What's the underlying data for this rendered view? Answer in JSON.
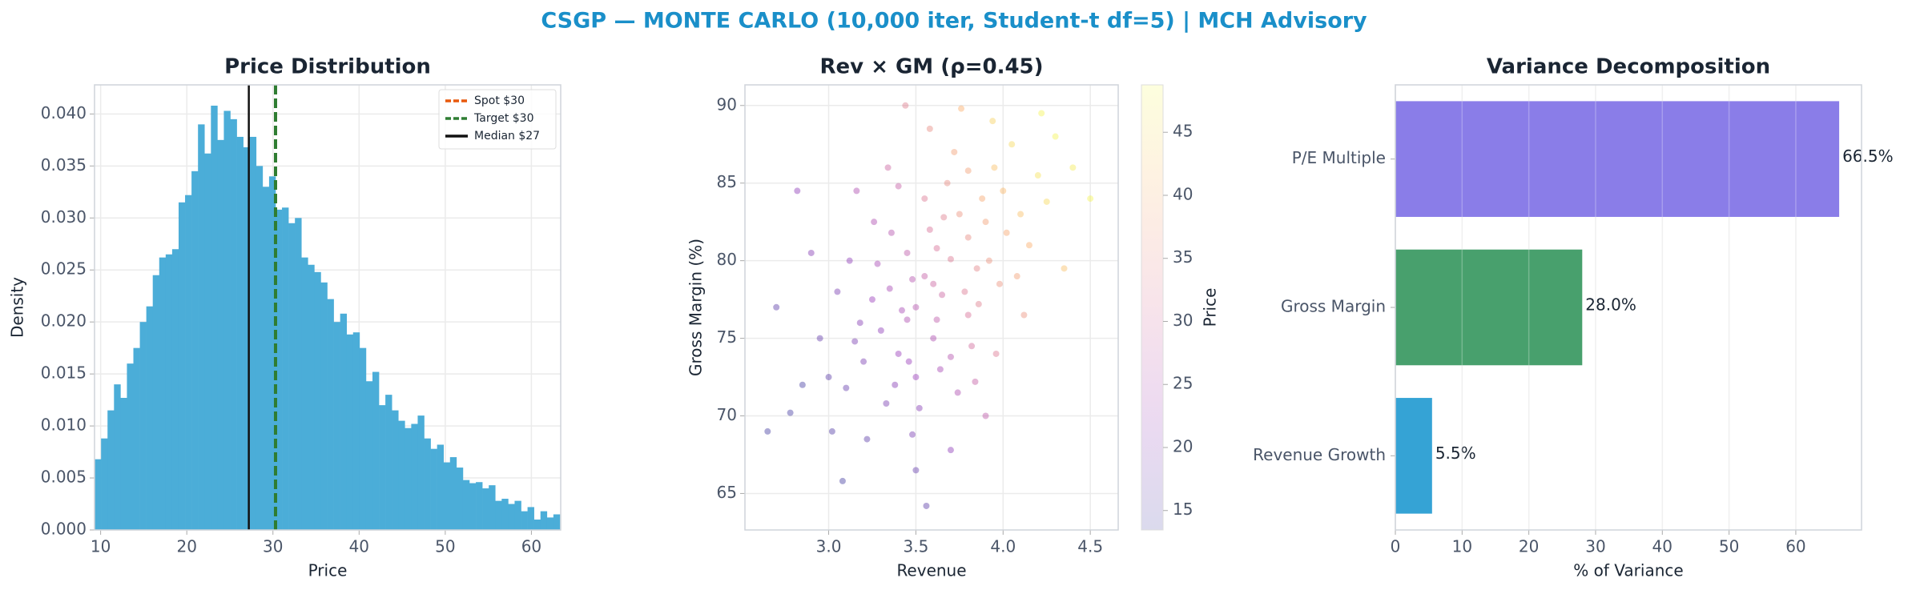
{
  "title": "CSGP — MONTE CARLO (10,000 iter, Student-t df=5) | MCH Advisory",
  "chart_data": [
    {
      "type": "histogram",
      "title": "Price Distribution",
      "xlabel": "Price",
      "ylabel": "Density",
      "color": "#4badd8",
      "grid": true,
      "bins": [
        9.3,
        10.05,
        10.8,
        11.55,
        12.3,
        13.05,
        13.8,
        14.55,
        15.3,
        16.05,
        16.8,
        17.55,
        18.3,
        19.05,
        19.8,
        20.55,
        21.3,
        22.05,
        22.8,
        23.55,
        24.3,
        25.05,
        25.8,
        26.55,
        27.3,
        28.05,
        28.8,
        29.55,
        30.3,
        31.05,
        31.8,
        32.55,
        33.3,
        34.05,
        34.8,
        35.55,
        36.3,
        37.05,
        37.8,
        38.55,
        39.3,
        40.05,
        40.8,
        41.55,
        42.3,
        43.05,
        43.8,
        44.55,
        45.3,
        46.05,
        46.8,
        47.55,
        48.3,
        49.05,
        49.8,
        50.55,
        51.3,
        52.05,
        52.8,
        53.55,
        54.3,
        55.05,
        55.8,
        56.55,
        57.3,
        58.05,
        58.8,
        59.55,
        60.3,
        61.05,
        61.8,
        62.55,
        63.3
      ],
      "values": [
        0.0068,
        0.0088,
        0.0115,
        0.014,
        0.0127,
        0.016,
        0.0175,
        0.02,
        0.0215,
        0.0245,
        0.0262,
        0.0265,
        0.027,
        0.0315,
        0.0322,
        0.0345,
        0.039,
        0.0362,
        0.0408,
        0.0375,
        0.0403,
        0.0395,
        0.0378,
        0.0368,
        0.0378,
        0.035,
        0.033,
        0.034,
        0.0308,
        0.031,
        0.0295,
        0.03,
        0.0262,
        0.0255,
        0.0248,
        0.0238,
        0.0222,
        0.02,
        0.0208,
        0.0188,
        0.019,
        0.0175,
        0.0143,
        0.0152,
        0.012,
        0.013,
        0.0115,
        0.0105,
        0.0098,
        0.0102,
        0.011,
        0.0088,
        0.0078,
        0.0082,
        0.0065,
        0.007,
        0.006,
        0.0048,
        0.0045,
        0.0046,
        0.004,
        0.0043,
        0.0028,
        0.003,
        0.0025,
        0.0028,
        0.0018,
        0.0022,
        0.001,
        0.0018,
        0.0012,
        0.0015
      ],
      "vlines": [
        {
          "name": "Spot $30",
          "x": 30.3,
          "color": "#e8590c",
          "style": "dashed"
        },
        {
          "name": "Target $30",
          "x": 30.3,
          "color": "#2e7d32",
          "style": "dashed"
        },
        {
          "name": "Median $27",
          "x": 27.2,
          "color": "#111111",
          "style": "solid"
        }
      ],
      "legend": "upper right",
      "xlim": [
        9.29,
        63.4
      ],
      "xticks": [
        10,
        20,
        30,
        40,
        50,
        60
      ],
      "ylim": [
        0,
        0.0428
      ],
      "yticks": [
        {
          "value": 0,
          "label": "0.000"
        },
        {
          "value": 0.005,
          "label": "0.005"
        },
        {
          "value": 0.01,
          "label": "0.010"
        },
        {
          "value": 0.015,
          "label": "0.015"
        },
        {
          "value": 0.02,
          "label": "0.020"
        },
        {
          "value": 0.025,
          "label": "0.025"
        },
        {
          "value": 0.03,
          "label": "0.030"
        },
        {
          "value": 0.035,
          "label": "0.035"
        },
        {
          "value": 0.04,
          "label": "0.040"
        }
      ]
    },
    {
      "type": "scatter",
      "title": "Rev × GM (ρ=0.45)",
      "xlabel": "Revenue",
      "ylabel": "Gross Margin (%)",
      "colormap": "plasma",
      "grid": true,
      "x": [
        3.5,
        3.45,
        3.6,
        3.7,
        3.3,
        3.8,
        3.55,
        3.4,
        3.65,
        3.9,
        3.2,
        3.75,
        3.35,
        3.85,
        3.5,
        4.0,
        3.1,
        3.6,
        3.95,
        3.25,
        3.7,
        4.1,
        3.45,
        3.8,
        3.15,
        3.58,
        4.05,
        3.38,
        3.68,
        3.92,
        3.0,
        3.52,
        4.2,
        3.28,
        3.78,
        3.42,
        3.62,
        3.88,
        3.18,
        4.15,
        2.95,
        3.48,
        3.72,
        3.33,
        3.98,
        3.55,
        4.3,
        3.05,
        3.82,
        3.22,
        3.66,
        4.08,
        3.36,
        2.85,
        3.94,
        3.46,
        4.25,
        3.12,
        3.74,
        3.58,
        2.78,
        3.86,
        3.4,
        4.4,
        3.02,
        3.64,
        4.02,
        3.26,
        3.76,
        3.5,
        2.7,
        4.12,
        3.34,
        3.84,
        2.9,
        4.5,
        3.56,
        3.96,
        3.16,
        3.7,
        4.22,
        2.82,
        3.44,
        3.9,
        3.08,
        4.35,
        2.65,
        3.62,
        3.48,
        3.8
      ],
      "y": [
        77,
        76.2,
        78.5,
        80.1,
        75.5,
        81.5,
        79,
        74,
        77.8,
        82.5,
        73.5,
        83,
        78.2,
        79.5,
        72.5,
        84.5,
        71.8,
        75,
        86,
        77.5,
        73.8,
        83,
        80.5,
        76.5,
        74.8,
        82,
        87.5,
        72,
        85,
        80,
        72.5,
        70.5,
        85.5,
        79.8,
        78,
        76.8,
        80.8,
        84,
        76,
        81,
        75,
        68.8,
        87,
        70.8,
        78.5,
        84,
        88,
        78,
        74.5,
        68.5,
        82.8,
        79,
        81.8,
        72,
        89,
        73.5,
        83.8,
        80,
        71.5,
        88.5,
        70.2,
        77.2,
        84.8,
        86,
        69,
        73,
        81.8,
        82.5,
        89.8,
        66.5,
        77,
        76.5,
        86,
        72.2,
        80.5,
        84,
        64.2,
        74,
        84.5,
        67.8,
        89.5,
        84.5,
        90,
        70,
        65.8,
        79.5,
        69,
        76.2,
        78.8,
        85.8
      ],
      "price": [
        26,
        25,
        29,
        32,
        21,
        35,
        28,
        22,
        29,
        38,
        19,
        36,
        24,
        34,
        22,
        41,
        17,
        25,
        42,
        22,
        26,
        42,
        27,
        31,
        19,
        31,
        45,
        20,
        35,
        36,
        16,
        20,
        46,
        24,
        32,
        24,
        31,
        39,
        20,
        40,
        17,
        19,
        38,
        19,
        36,
        32,
        48,
        19,
        30,
        16,
        33,
        38,
        26,
        14,
        44,
        22,
        45,
        21,
        25,
        35,
        14,
        33,
        28,
        47,
        15,
        24,
        39,
        25,
        40,
        17,
        16,
        36,
        29,
        28,
        20,
        48,
        16,
        32,
        25,
        21,
        48,
        21,
        33,
        27,
        13.8,
        42,
        13.8,
        27,
        26,
        38
      ],
      "xlim": [
        2.52,
        4.66
      ],
      "xticks": [
        {
          "value": 3,
          "label": "3.0"
        },
        {
          "value": 3.5,
          "label": "3.5"
        },
        {
          "value": 4,
          "label": "4.0"
        },
        {
          "value": 4.5,
          "label": "4.5"
        }
      ],
      "ylim": [
        62.65,
        91.33
      ],
      "yticks": [
        65,
        70,
        75,
        80,
        85,
        90
      ],
      "colorbar": {
        "label": "Price",
        "lim": [
          13.46,
          48.76
        ],
        "ticks": [
          15,
          20,
          25,
          30,
          35,
          40,
          45
        ]
      }
    },
    {
      "type": "barh",
      "title": "Variance Decomposition",
      "xlabel": "% of Variance",
      "grid": true,
      "categories": [
        "Revenue Growth",
        "Gross Margin",
        "P/E Multiple"
      ],
      "values": [
        5.5,
        28.0,
        66.5
      ],
      "value_labels": [
        "5.5%",
        "28.0%",
        "66.5%"
      ],
      "colors": [
        "#35a3d5",
        "#48a06d",
        "#8a7de8"
      ],
      "xlim": [
        0,
        69.85
      ],
      "xticks": [
        0,
        10,
        20,
        30,
        40,
        50,
        60
      ]
    }
  ]
}
